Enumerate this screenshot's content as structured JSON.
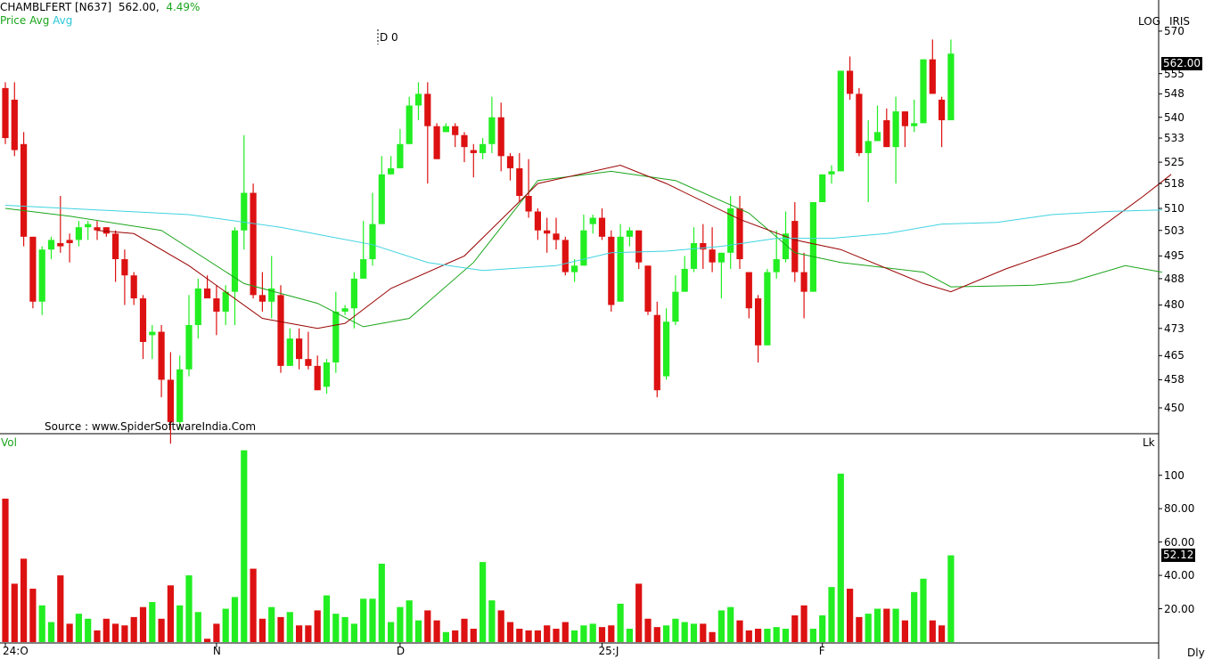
{
  "header": {
    "symbol": "CHAMBLFERT [N637]",
    "last": "562.00,",
    "change": "4.49%",
    "legend_price": "Price",
    "legend_avg1": "Avg",
    "legend_avg2": "Avg",
    "cursor_label": "D 0",
    "scale_mode": "LOG",
    "brand": "IRIS",
    "source": "Source : www.SpiderSoftwareIndia.Com"
  },
  "volume_panel": {
    "label": "Vol",
    "unit": "Lk",
    "last_tag": "52.12",
    "ticks": [
      "20.00",
      "40.00",
      "60.00",
      "80.00",
      "100"
    ]
  },
  "price_panel": {
    "last_tag": "562.00",
    "ticks": [
      "450",
      "458",
      "465",
      "473",
      "480",
      "488",
      "495",
      "503",
      "510",
      "518",
      "525",
      "533",
      "540",
      "548",
      "555",
      "570"
    ]
  },
  "xaxis": {
    "labels": [
      "24:O",
      "N",
      "D",
      "25:J",
      "F"
    ],
    "footer": "Dly"
  },
  "colors": {
    "up": "#22ee22",
    "down": "#dd1111",
    "avg_short": "#990000",
    "avg_mid": "#1aa51a",
    "avg_long": "#3fd3e0"
  },
  "chart_data": {
    "type": "candlestick",
    "title": "CHAMBLFERT [N637]",
    "scale": "log",
    "ylim": [
      444,
      578
    ],
    "vol_ylim": [
      0,
      118
    ],
    "x_labels": [
      {
        "label": "24:O",
        "index": 0
      },
      {
        "label": "N",
        "index": 23
      },
      {
        "label": "D",
        "index": 43
      },
      {
        "label": "25:J",
        "index": 65
      },
      {
        "label": "F",
        "index": 89
      }
    ],
    "candles": [
      [
        550,
        531,
        552,
        533,
        86
      ],
      [
        546,
        527,
        552,
        529,
        35
      ],
      [
        531,
        498,
        535,
        501,
        50
      ],
      [
        501,
        479,
        501,
        481,
        32
      ],
      [
        481,
        477,
        498,
        497,
        22
      ],
      [
        497,
        494,
        501,
        500,
        12
      ],
      [
        499,
        496,
        514,
        498,
        40
      ],
      [
        500,
        493,
        502,
        499,
        11
      ],
      [
        500,
        498,
        506,
        504,
        17
      ],
      [
        504,
        500,
        506,
        505,
        14
      ],
      [
        504,
        500,
        506,
        503,
        7
      ],
      [
        504,
        501,
        504,
        502,
        14
      ],
      [
        502,
        487,
        503,
        494,
        11
      ],
      [
        494,
        480,
        497,
        489,
        10
      ],
      [
        489,
        480,
        490,
        482,
        15
      ],
      [
        482,
        464,
        483,
        469,
        21
      ],
      [
        471,
        464,
        474,
        472,
        24
      ],
      [
        472,
        453,
        474,
        458,
        14
      ],
      [
        458,
        440,
        466,
        446,
        34
      ],
      [
        446,
        444,
        465,
        461,
        22
      ],
      [
        461,
        459,
        483,
        474,
        40
      ],
      [
        474,
        470,
        488,
        485,
        18
      ],
      [
        485,
        482,
        489,
        482,
        2
      ],
      [
        482,
        471,
        486,
        478,
        11
      ],
      [
        478,
        474,
        486,
        484,
        20
      ],
      [
        484,
        474,
        504,
        503,
        27
      ],
      [
        503,
        497,
        534,
        515,
        115
      ],
      [
        515,
        482,
        518,
        483,
        44
      ],
      [
        483,
        478,
        490,
        481,
        14
      ],
      [
        481,
        476,
        495,
        485,
        21
      ],
      [
        483,
        460,
        486,
        462,
        15
      ],
      [
        462,
        463,
        473,
        470,
        18
      ],
      [
        470,
        461,
        473,
        464,
        10
      ],
      [
        464,
        461,
        472,
        462,
        10
      ],
      [
        462,
        455,
        465,
        455,
        19
      ],
      [
        456,
        454,
        464,
        463,
        28
      ],
      [
        463,
        460,
        484,
        478,
        17
      ],
      [
        478,
        477,
        480,
        479,
        15
      ],
      [
        479,
        473,
        490,
        488,
        11
      ],
      [
        488,
        491,
        506,
        494,
        26
      ],
      [
        494,
        492,
        515,
        505,
        26
      ],
      [
        505,
        508,
        527,
        521,
        47
      ],
      [
        521,
        522,
        527,
        523,
        12
      ],
      [
        523,
        527,
        536,
        531,
        21
      ],
      [
        531,
        534,
        547,
        544,
        25
      ],
      [
        544,
        539,
        552,
        548,
        13
      ],
      [
        548,
        518,
        552,
        537,
        19
      ],
      [
        537,
        526,
        538,
        526,
        13
      ],
      [
        535,
        535,
        538,
        537,
        6
      ],
      [
        537,
        530,
        538,
        534,
        7
      ],
      [
        534,
        525,
        535,
        530,
        14
      ],
      [
        529,
        520,
        531,
        528,
        8
      ],
      [
        528,
        526,
        533,
        531,
        48
      ],
      [
        531,
        528,
        547,
        540,
        25
      ],
      [
        540,
        522,
        545,
        527,
        19
      ],
      [
        527,
        519,
        528,
        523,
        12
      ],
      [
        523,
        512,
        528,
        514,
        8
      ],
      [
        514,
        507,
        526,
        509,
        7
      ],
      [
        509,
        500,
        510,
        503,
        7
      ],
      [
        503,
        496,
        507,
        502,
        10
      ],
      [
        502,
        497,
        507,
        500,
        8
      ],
      [
        500,
        489,
        501,
        490,
        12
      ],
      [
        490,
        487,
        494,
        492,
        7
      ],
      [
        492,
        493,
        508,
        503,
        10
      ],
      [
        505,
        502,
        508,
        507,
        11
      ],
      [
        507,
        500,
        510,
        501,
        9
      ],
      [
        501,
        478,
        503,
        480,
        10
      ],
      [
        481,
        481,
        505,
        501,
        23
      ],
      [
        501,
        498,
        504,
        503,
        8
      ],
      [
        503,
        491,
        503,
        493,
        35
      ],
      [
        492,
        477,
        492,
        478,
        14
      ],
      [
        477,
        453,
        481,
        455,
        9
      ],
      [
        459,
        458,
        479,
        475,
        10
      ],
      [
        475,
        474,
        489,
        484,
        14
      ],
      [
        484,
        485,
        495,
        491,
        12
      ],
      [
        491,
        490,
        504,
        499,
        11
      ],
      [
        499,
        491,
        505,
        497,
        11
      ],
      [
        497,
        490,
        504,
        493,
        6
      ],
      [
        493,
        482,
        496,
        496,
        19
      ],
      [
        496,
        491,
        514,
        510,
        21
      ],
      [
        510,
        491,
        514,
        494,
        13
      ],
      [
        490,
        476,
        490,
        479,
        7
      ],
      [
        482,
        463,
        483,
        468,
        8
      ],
      [
        468,
        468,
        491,
        490,
        8
      ],
      [
        490,
        488,
        503,
        494,
        9
      ],
      [
        494,
        493,
        509,
        502,
        8
      ],
      [
        506,
        487,
        512,
        490,
        16
      ],
      [
        490,
        476,
        496,
        484,
        22
      ],
      [
        484,
        497,
        509,
        512,
        8
      ],
      [
        512,
        518,
        520,
        521,
        16
      ],
      [
        521,
        518,
        524,
        522,
        33
      ],
      [
        522,
        522,
        551,
        556,
        101
      ],
      [
        556,
        546,
        561,
        548,
        32
      ],
      [
        548,
        527,
        550,
        528,
        15
      ],
      [
        528,
        512,
        539,
        532,
        17
      ],
      [
        532,
        536,
        544,
        535,
        20
      ],
      [
        539,
        530,
        543,
        530,
        20
      ],
      [
        530,
        518,
        547,
        542,
        20
      ],
      [
        542,
        530,
        538,
        537,
        13
      ],
      [
        537,
        535,
        546,
        538,
        30
      ],
      [
        538,
        556,
        559,
        560,
        38
      ],
      [
        560,
        558,
        567,
        548,
        13
      ],
      [
        546,
        530,
        547,
        539,
        10
      ],
      [
        539,
        539,
        567,
        562,
        52
      ]
    ],
    "series": [
      {
        "name": "Avg",
        "values": [
          [
            0,
            510.0
          ],
          [
            7,
            507.5
          ],
          [
            17,
            503.0
          ],
          [
            26,
            486.5
          ],
          [
            34,
            480.5
          ],
          [
            39,
            473.5
          ],
          [
            44,
            476.0
          ],
          [
            51,
            493.0
          ],
          [
            58,
            519.0
          ],
          [
            66,
            522.0
          ],
          [
            73,
            519.0
          ],
          [
            81,
            508.5
          ],
          [
            86,
            496.0
          ],
          [
            91,
            493.0
          ],
          [
            100,
            490.0
          ],
          [
            103,
            485.5
          ],
          [
            112,
            486.0
          ],
          [
            116,
            487.0
          ],
          [
            122,
            492.0
          ],
          [
            126,
            490.0
          ]
        ]
      },
      {
        "name": "Avg",
        "values": [
          [
            10,
            503.0
          ],
          [
            14,
            502.0
          ],
          [
            20,
            492.0
          ],
          [
            28,
            476.0
          ],
          [
            34,
            473.0
          ],
          [
            37,
            474.5
          ],
          [
            42,
            485.0
          ],
          [
            50,
            495.0
          ],
          [
            58,
            518.0
          ],
          [
            67,
            524.0
          ],
          [
            72,
            518.0
          ],
          [
            80,
            506.5
          ],
          [
            86,
            500.0
          ],
          [
            91,
            497.0
          ],
          [
            100,
            486.5
          ],
          [
            103,
            484.0
          ],
          [
            109,
            491.0
          ],
          [
            117,
            499.0
          ],
          [
            124,
            514.0
          ],
          [
            127,
            521.0
          ]
        ]
      },
      {
        "name": "Avg",
        "values": [
          [
            0,
            511.0
          ],
          [
            10,
            509.5
          ],
          [
            20,
            508.0
          ],
          [
            30,
            504.0
          ],
          [
            40,
            498.5
          ],
          [
            46,
            493.0
          ],
          [
            52,
            490.5
          ],
          [
            60,
            492.0
          ],
          [
            66,
            496.0
          ],
          [
            72,
            496.5
          ],
          [
            78,
            498.0
          ],
          [
            84,
            500.5
          ],
          [
            90,
            500.5
          ],
          [
            96,
            502.0
          ],
          [
            102,
            505.0
          ],
          [
            108,
            505.5
          ],
          [
            114,
            508.0
          ],
          [
            120,
            509.0
          ],
          [
            126,
            509.5
          ]
        ]
      }
    ]
  }
}
